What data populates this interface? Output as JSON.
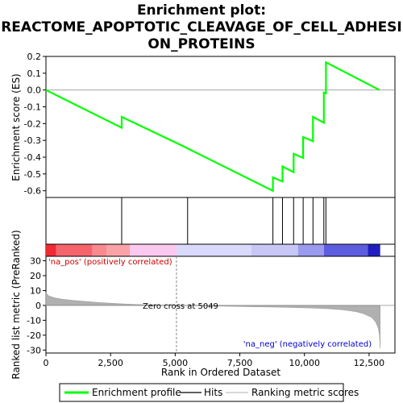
{
  "chart_data": {
    "type": "line",
    "title_lines": [
      "Enrichment plot:",
      "REACTOME_APOPTOTIC_CLEAVAGE_OF_CELL_ADHESI",
      "ON_PROTEINS"
    ],
    "xlabel": "Rank in Ordered Dataset",
    "ylabel_top": "Enrichment score (ES)",
    "ylabel_bottom": "Ranked list metric (PreRanked)",
    "xlim": [
      0,
      13500
    ],
    "x_ticks": [
      0,
      2500,
      5000,
      7500,
      10000,
      12500
    ],
    "x_tick_labels": [
      "0",
      "2,500",
      "5,000",
      "7,500",
      "10,000",
      "12,500"
    ],
    "es_ylim": [
      -0.64,
      0.2
    ],
    "es_ticks": [
      0.2,
      0.1,
      0.0,
      -0.1,
      -0.2,
      -0.3,
      -0.4,
      -0.5,
      -0.6
    ],
    "es_tick_labels": [
      "0.2",
      "0.1",
      "0.0",
      "-0.1",
      "-0.2",
      "-0.3",
      "-0.4",
      "-0.5",
      "-0.6"
    ],
    "metric_ylim": [
      -32,
      33
    ],
    "metric_ticks": [
      30,
      20,
      10,
      0,
      -10,
      -20,
      -30
    ],
    "metric_tick_labels": [
      "30",
      "20",
      "10",
      "0",
      "-10",
      "-20",
      "-30"
    ],
    "es_curve": [
      [
        0,
        0.0
      ],
      [
        2930,
        -0.225
      ],
      [
        2930,
        -0.16
      ],
      [
        5450,
        -0.345
      ],
      [
        5510,
        -0.35
      ],
      [
        8780,
        -0.6
      ],
      [
        8780,
        -0.52
      ],
      [
        9150,
        -0.545
      ],
      [
        9150,
        -0.455
      ],
      [
        9580,
        -0.49
      ],
      [
        9580,
        -0.38
      ],
      [
        9950,
        -0.405
      ],
      [
        9950,
        -0.28
      ],
      [
        10330,
        -0.305
      ],
      [
        10330,
        -0.16
      ],
      [
        10750,
        -0.195
      ],
      [
        10750,
        -0.015
      ],
      [
        10830,
        -0.02
      ],
      [
        10830,
        0.165
      ],
      [
        12900,
        0.0
      ]
    ],
    "hits": [
      2930,
      5480,
      8780,
      9150,
      9580,
      9950,
      10330,
      10750,
      10830
    ],
    "zero_cross": 5049,
    "zero_cross_label": "Zero cross at 5049",
    "pos_label": "'na_pos' (positively correlated)",
    "neg_label": "'na_neg' (negatively correlated)",
    "metric_curve": [
      [
        0,
        8.5
      ],
      [
        100,
        6.5
      ],
      [
        300,
        5.2
      ],
      [
        600,
        4.3
      ],
      [
        1000,
        3.5
      ],
      [
        1500,
        2.7
      ],
      [
        2000,
        2.0
      ],
      [
        2500,
        1.5
      ],
      [
        3000,
        1.0
      ],
      [
        3500,
        0.6
      ],
      [
        4000,
        0.35
      ],
      [
        4500,
        0.15
      ],
      [
        5049,
        0.0
      ],
      [
        6000,
        -0.3
      ],
      [
        7000,
        -0.6
      ],
      [
        8000,
        -0.9
      ],
      [
        9000,
        -1.2
      ],
      [
        10000,
        -1.6
      ],
      [
        10500,
        -1.9
      ],
      [
        11000,
        -2.3
      ],
      [
        11500,
        -3.0
      ],
      [
        12000,
        -4.2
      ],
      [
        12300,
        -5.6
      ],
      [
        12600,
        -8.0
      ],
      [
        12750,
        -11.0
      ],
      [
        12850,
        -15.0
      ],
      [
        12900,
        -20.0
      ],
      [
        12930,
        -29.0
      ]
    ],
    "bar_segments": [
      {
        "start": 0,
        "end": 400,
        "color": "#ee2a34"
      },
      {
        "start": 400,
        "end": 1800,
        "color": "#f5646b"
      },
      {
        "start": 1800,
        "end": 2350,
        "color": "#f88a8f"
      },
      {
        "start": 2350,
        "end": 3250,
        "color": "#f9a3a6"
      },
      {
        "start": 3250,
        "end": 5049,
        "color": "#fbc8f0"
      },
      {
        "start": 5049,
        "end": 7950,
        "color": "#d9d9fb"
      },
      {
        "start": 7950,
        "end": 9750,
        "color": "#c7c7f6"
      },
      {
        "start": 9750,
        "end": 10750,
        "color": "#9a9aee"
      },
      {
        "start": 10750,
        "end": 12450,
        "color": "#5d5de0"
      },
      {
        "start": 12450,
        "end": 12930,
        "color": "#1f1fbf"
      }
    ],
    "legend": [
      "Enrichment profile",
      "Hits",
      "Ranking metric scores"
    ],
    "colors": {
      "es": "#00ff00",
      "hits": "#000000",
      "metric": "#b0b0b0",
      "zero_line": "#888888"
    }
  }
}
